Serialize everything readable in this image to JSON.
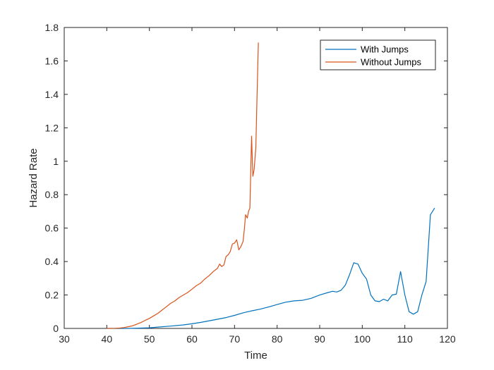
{
  "chart_data": {
    "type": "line",
    "title": "",
    "xlabel": "Time",
    "ylabel": "Hazard Rate",
    "xlim": [
      30,
      120
    ],
    "ylim": [
      0,
      1.8
    ],
    "xticks": [
      30,
      40,
      50,
      60,
      70,
      80,
      90,
      100,
      110,
      120
    ],
    "yticks": [
      0,
      0.2,
      0.4,
      0.6,
      0.8,
      1,
      1.2,
      1.4,
      1.6,
      1.8
    ],
    "grid": false,
    "legend_position": "top-right",
    "series": [
      {
        "name": "With Jumps",
        "color": "#0072BD",
        "x": [
          40,
          45,
          48,
          50,
          52,
          55,
          58,
          60,
          62,
          65,
          68,
          70,
          72,
          74,
          76,
          78,
          80,
          82,
          84,
          86,
          88,
          90,
          92,
          93,
          94,
          95,
          96,
          97,
          98,
          99,
          100,
          101,
          102,
          103,
          104,
          105,
          106,
          107,
          108,
          109,
          110,
          111,
          112,
          113,
          114,
          115,
          116,
          117
        ],
        "y": [
          0,
          0,
          0.002,
          0.004,
          0.008,
          0.014,
          0.021,
          0.028,
          0.036,
          0.05,
          0.065,
          0.078,
          0.093,
          0.105,
          0.115,
          0.128,
          0.143,
          0.157,
          0.165,
          0.168,
          0.18,
          0.2,
          0.215,
          0.222,
          0.218,
          0.228,
          0.258,
          0.32,
          0.393,
          0.385,
          0.33,
          0.295,
          0.2,
          0.165,
          0.16,
          0.175,
          0.165,
          0.2,
          0.205,
          0.34,
          0.2,
          0.1,
          0.085,
          0.1,
          0.2,
          0.28,
          0.68,
          0.72
        ]
      },
      {
        "name": "Without Jumps",
        "color": "#D95319",
        "x": [
          40,
          42,
          43,
          44,
          45,
          46,
          47,
          48,
          49,
          50,
          51,
          52,
          53,
          54,
          55,
          56,
          57,
          58,
          59,
          60,
          61,
          62,
          63,
          64,
          65,
          65.5,
          66,
          66.5,
          67,
          67.5,
          68,
          68.5,
          69,
          69.5,
          70,
          70.5,
          71,
          71.5,
          72,
          72.3,
          72.6,
          73,
          73.3,
          73.6,
          74,
          74.3,
          74.6,
          75,
          75.3,
          75.6
        ],
        "y": [
          0,
          0.001,
          0.002,
          0.005,
          0.01,
          0.015,
          0.025,
          0.035,
          0.048,
          0.06,
          0.075,
          0.09,
          0.11,
          0.13,
          0.15,
          0.165,
          0.185,
          0.2,
          0.215,
          0.235,
          0.255,
          0.27,
          0.295,
          0.315,
          0.34,
          0.35,
          0.36,
          0.385,
          0.37,
          0.38,
          0.43,
          0.44,
          0.46,
          0.505,
          0.51,
          0.53,
          0.47,
          0.49,
          0.52,
          0.59,
          0.68,
          0.66,
          0.7,
          0.72,
          1.15,
          0.91,
          0.95,
          1.08,
          1.4,
          1.71
        ]
      }
    ]
  }
}
